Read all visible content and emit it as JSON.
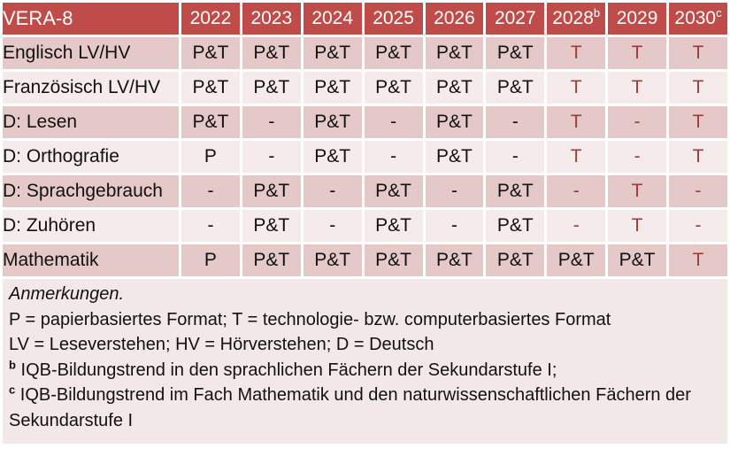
{
  "table": {
    "title": "VERA-8",
    "columns": [
      {
        "label": "2022",
        "sup": ""
      },
      {
        "label": "2023",
        "sup": ""
      },
      {
        "label": "2024",
        "sup": ""
      },
      {
        "label": "2025",
        "sup": ""
      },
      {
        "label": "2026",
        "sup": ""
      },
      {
        "label": "2027",
        "sup": ""
      },
      {
        "label": "2028",
        "sup": "b"
      },
      {
        "label": "2029",
        "sup": ""
      },
      {
        "label": "2030",
        "sup": "c"
      }
    ],
    "rows": [
      {
        "label": "Englisch LV/HV",
        "cells": [
          {
            "text": "P&T",
            "red": false
          },
          {
            "text": "P&T",
            "red": false
          },
          {
            "text": "P&T",
            "red": false
          },
          {
            "text": "P&T",
            "red": false
          },
          {
            "text": "P&T",
            "red": false
          },
          {
            "text": "P&T",
            "red": false
          },
          {
            "text": "T",
            "red": true
          },
          {
            "text": "T",
            "red": true
          },
          {
            "text": "T",
            "red": true
          }
        ]
      },
      {
        "label": "Französisch LV/HV",
        "cells": [
          {
            "text": "P&T",
            "red": false
          },
          {
            "text": "P&T",
            "red": false
          },
          {
            "text": "P&T",
            "red": false
          },
          {
            "text": "P&T",
            "red": false
          },
          {
            "text": "P&T",
            "red": false
          },
          {
            "text": "P&T",
            "red": false
          },
          {
            "text": "T",
            "red": true
          },
          {
            "text": "T",
            "red": true
          },
          {
            "text": "T",
            "red": true
          }
        ]
      },
      {
        "label": "D: Lesen",
        "cells": [
          {
            "text": "P&T",
            "red": false
          },
          {
            "text": "-",
            "red": false
          },
          {
            "text": "P&T",
            "red": false
          },
          {
            "text": "-",
            "red": false
          },
          {
            "text": "P&T",
            "red": false
          },
          {
            "text": "-",
            "red": false
          },
          {
            "text": "T",
            "red": true
          },
          {
            "text": "-",
            "red": true
          },
          {
            "text": "T",
            "red": true
          }
        ]
      },
      {
        "label": "D: Orthografie",
        "cells": [
          {
            "text": "P",
            "red": false
          },
          {
            "text": "-",
            "red": false
          },
          {
            "text": "P&T",
            "red": false
          },
          {
            "text": "-",
            "red": false
          },
          {
            "text": "P&T",
            "red": false
          },
          {
            "text": "-",
            "red": false
          },
          {
            "text": "T",
            "red": true
          },
          {
            "text": "-",
            "red": true
          },
          {
            "text": "T",
            "red": true
          }
        ]
      },
      {
        "label": "D: Sprachgebrauch",
        "cells": [
          {
            "text": "-",
            "red": false
          },
          {
            "text": "P&T",
            "red": false
          },
          {
            "text": "-",
            "red": false
          },
          {
            "text": "P&T",
            "red": false
          },
          {
            "text": "-",
            "red": false
          },
          {
            "text": "P&T",
            "red": false
          },
          {
            "text": "-",
            "red": true
          },
          {
            "text": "T",
            "red": true
          },
          {
            "text": "-",
            "red": true
          }
        ]
      },
      {
        "label": "D: Zuhören",
        "cells": [
          {
            "text": "-",
            "red": false
          },
          {
            "text": "P&T",
            "red": false
          },
          {
            "text": "-",
            "red": false
          },
          {
            "text": "P&T",
            "red": false
          },
          {
            "text": "-",
            "red": false
          },
          {
            "text": "P&T",
            "red": false
          },
          {
            "text": "-",
            "red": true
          },
          {
            "text": "T",
            "red": true
          },
          {
            "text": "-",
            "red": true
          }
        ]
      },
      {
        "label": "Mathematik",
        "cells": [
          {
            "text": "P",
            "red": false
          },
          {
            "text": "P&T",
            "red": false
          },
          {
            "text": "P&T",
            "red": false
          },
          {
            "text": "P&T",
            "red": false
          },
          {
            "text": "P&T",
            "red": false
          },
          {
            "text": "P&T",
            "red": false
          },
          {
            "text": "P&T",
            "red": false
          },
          {
            "text": "P&T",
            "red": false
          },
          {
            "text": "T",
            "red": true
          }
        ]
      }
    ]
  },
  "notes": {
    "title": "Anmerkungen.",
    "lines": [
      {
        "sup": "",
        "text": "P = papierbasiertes Format; T = technologie- bzw. computerbasiertes Format"
      },
      {
        "sup": "",
        "text": "LV = Leseverstehen; HV = Hörverstehen; D = Deutsch"
      },
      {
        "sup": "b",
        "text": " IQB-Bildungstrend in den sprachlichen Fächern der Sekundarstufe I;"
      },
      {
        "sup": "c",
        "text": " IQB-Bildungstrend im Fach Mathematik und den naturwissenschaftlichen Fächern der Sekundarstufe I"
      }
    ]
  },
  "colors": {
    "header_bg": "#BF4C49",
    "header_text": "#FFFFFF",
    "row_band_dark": "#E5C9C8",
    "row_band_light": "#F4EBEA",
    "notes_bg": "#F2E8E8",
    "text": "#111111",
    "highlight_text": "#9E3B38"
  }
}
